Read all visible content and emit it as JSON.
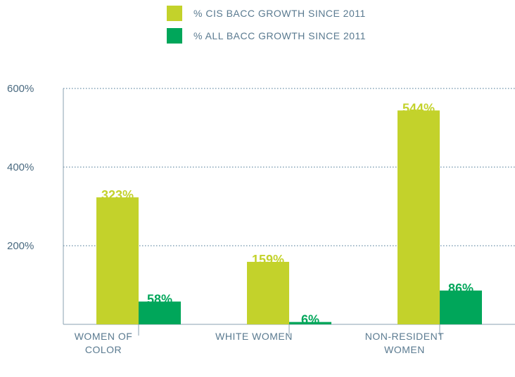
{
  "chart_data": {
    "type": "bar",
    "categories": [
      "WOMEN OF COLOR",
      "WHITE WOMEN",
      "NON-RESIDENT WOMEN"
    ],
    "series": [
      {
        "name": "% CIS BACC GROWTH SINCE 2011",
        "color": "#c3d22b",
        "values": [
          323,
          159,
          544
        ],
        "value_labels": [
          "323%",
          "159%",
          "544%"
        ]
      },
      {
        "name": "% ALL BACC GROWTH SINCE 2011",
        "color": "#00a65a",
        "values": [
          58,
          6,
          86
        ],
        "value_labels": [
          "58%",
          "6%",
          "86%"
        ]
      }
    ],
    "ylim": [
      0,
      600
    ],
    "yticks": [
      {
        "value": 200,
        "label": "200%"
      },
      {
        "value": 400,
        "label": "400%"
      },
      {
        "value": 600,
        "label": "600%"
      }
    ],
    "grid": true
  }
}
